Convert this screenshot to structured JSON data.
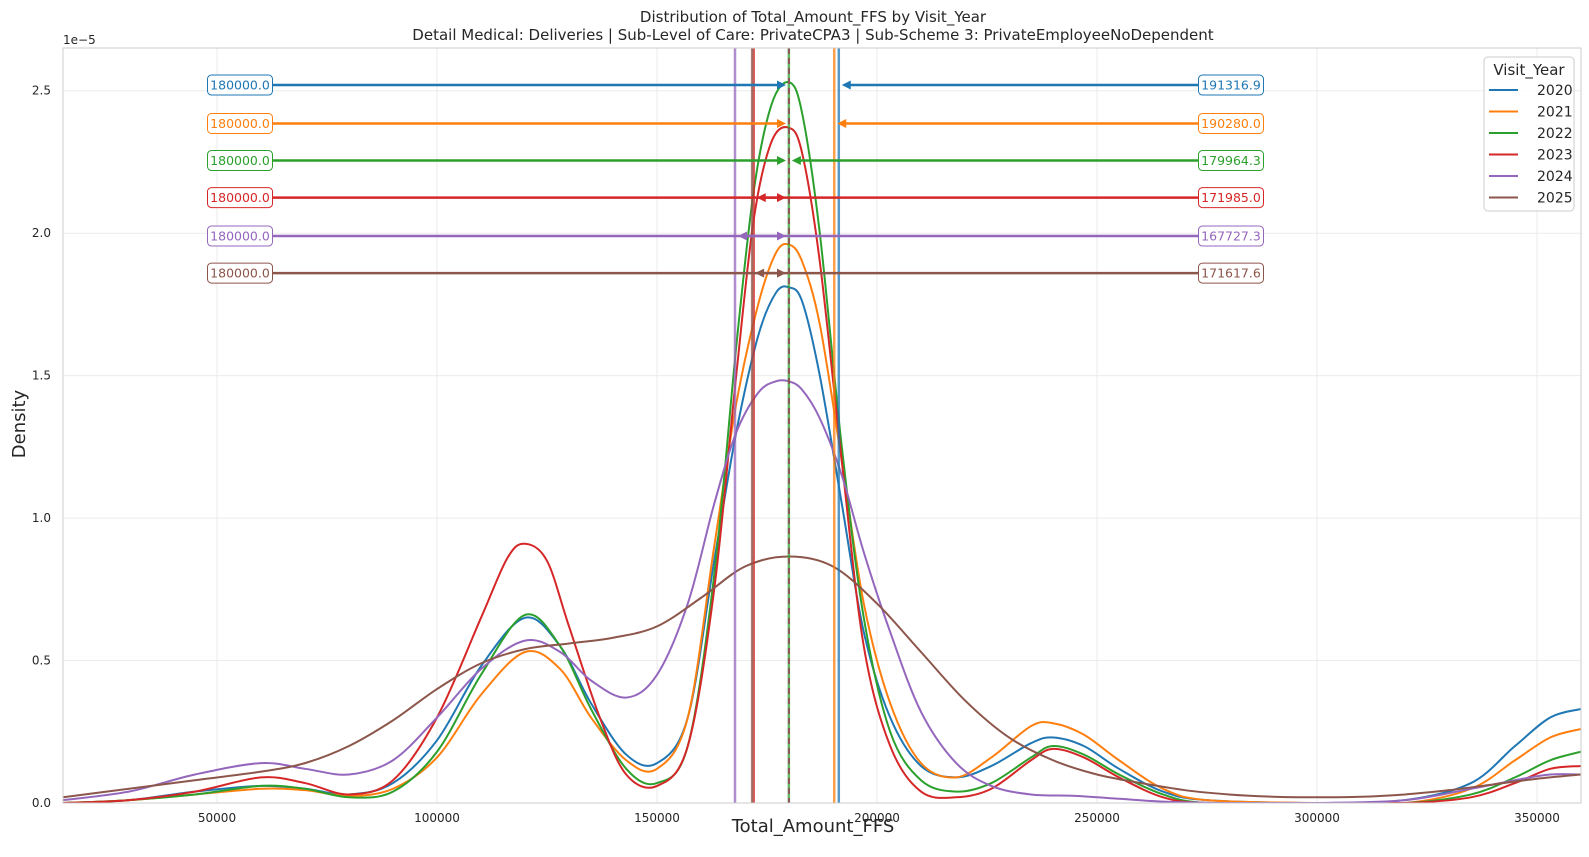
{
  "chart_data": {
    "type": "line",
    "title": "Distribution of Total_Amount_FFS by Visit_Year",
    "subtitle": "Detail Medical: Deliveries | Sub-Level of Care: PrivateCPA3 | Sub-Scheme 3: PrivateEmployeeNoDependent",
    "xlabel": "Total_Amount_FFS",
    "ylabel": "Density",
    "y_offset_label": "1e−5",
    "xlim": [
      15000,
      360000
    ],
    "ylim": [
      0,
      2.65
    ],
    "x_ticks": [
      50000,
      100000,
      150000,
      200000,
      250000,
      300000,
      350000
    ],
    "x_tick_labels": [
      "50000",
      "100000",
      "150000",
      "200000",
      "250000",
      "300000",
      "350000"
    ],
    "y_ticks": [
      0,
      0.5,
      1.0,
      1.5,
      2.0,
      2.5
    ],
    "y_tick_labels": [
      "0.0",
      "0.5",
      "1.0",
      "1.5",
      "2.0",
      "2.5"
    ],
    "grid": true,
    "legend_title": "Visit_Year",
    "legend_position": "top-right",
    "series": [
      {
        "name": "2020",
        "color": "#1f77b4",
        "median": 180000,
        "mean": 191316.9,
        "median_label": "180000.0",
        "mean_label": "191316.9",
        "annotation_y": 2.52,
        "points": [
          [
            15000,
            0.0
          ],
          [
            30000,
            0.01
          ],
          [
            45000,
            0.04
          ],
          [
            60000,
            0.06
          ],
          [
            70000,
            0.05
          ],
          [
            80000,
            0.03
          ],
          [
            90000,
            0.07
          ],
          [
            100000,
            0.22
          ],
          [
            110000,
            0.48
          ],
          [
            120000,
            0.65
          ],
          [
            128000,
            0.55
          ],
          [
            135000,
            0.35
          ],
          [
            143000,
            0.17
          ],
          [
            150000,
            0.14
          ],
          [
            157000,
            0.3
          ],
          [
            163000,
            0.85
          ],
          [
            168000,
            1.3
          ],
          [
            173000,
            1.64
          ],
          [
            177000,
            1.79
          ],
          [
            180000,
            1.81
          ],
          [
            183000,
            1.76
          ],
          [
            187000,
            1.5
          ],
          [
            192000,
            1.05
          ],
          [
            197000,
            0.6
          ],
          [
            203000,
            0.3
          ],
          [
            210000,
            0.13
          ],
          [
            218000,
            0.09
          ],
          [
            226000,
            0.13
          ],
          [
            235000,
            0.21
          ],
          [
            240000,
            0.23
          ],
          [
            247000,
            0.2
          ],
          [
            255000,
            0.12
          ],
          [
            265000,
            0.04
          ],
          [
            275000,
            0.01
          ],
          [
            300000,
            0.0
          ],
          [
            320000,
            0.01
          ],
          [
            335000,
            0.07
          ],
          [
            345000,
            0.2
          ],
          [
            353000,
            0.3
          ],
          [
            360000,
            0.33
          ]
        ]
      },
      {
        "name": "2021",
        "color": "#ff7f0e",
        "median": 180000,
        "mean": 190280,
        "median_label": "180000.0",
        "mean_label": "190280.0",
        "annotation_y": 2.385,
        "points": [
          [
            15000,
            0.0
          ],
          [
            30000,
            0.01
          ],
          [
            45000,
            0.03
          ],
          [
            60000,
            0.05
          ],
          [
            70000,
            0.045
          ],
          [
            80000,
            0.025
          ],
          [
            90000,
            0.05
          ],
          [
            100000,
            0.16
          ],
          [
            110000,
            0.38
          ],
          [
            120000,
            0.53
          ],
          [
            128000,
            0.47
          ],
          [
            135000,
            0.3
          ],
          [
            143000,
            0.15
          ],
          [
            150000,
            0.12
          ],
          [
            157000,
            0.3
          ],
          [
            163000,
            0.9
          ],
          [
            168000,
            1.4
          ],
          [
            173000,
            1.75
          ],
          [
            177000,
            1.93
          ],
          [
            180000,
            1.96
          ],
          [
            183000,
            1.9
          ],
          [
            187000,
            1.68
          ],
          [
            192000,
            1.2
          ],
          [
            197000,
            0.7
          ],
          [
            203000,
            0.35
          ],
          [
            210000,
            0.14
          ],
          [
            218000,
            0.09
          ],
          [
            226000,
            0.16
          ],
          [
            235000,
            0.27
          ],
          [
            240000,
            0.28
          ],
          [
            247000,
            0.24
          ],
          [
            255000,
            0.15
          ],
          [
            265000,
            0.05
          ],
          [
            275000,
            0.01
          ],
          [
            300000,
            0.0
          ],
          [
            320000,
            0.0
          ],
          [
            335000,
            0.05
          ],
          [
            345000,
            0.15
          ],
          [
            353000,
            0.23
          ],
          [
            360000,
            0.26
          ]
        ]
      },
      {
        "name": "2022",
        "color": "#2ca02c",
        "median": 180000,
        "mean": 179964.3,
        "median_label": "180000.0",
        "mean_label": "179964.3",
        "annotation_y": 2.255,
        "points": [
          [
            15000,
            0.0
          ],
          [
            30000,
            0.01
          ],
          [
            45000,
            0.03
          ],
          [
            60000,
            0.06
          ],
          [
            70000,
            0.05
          ],
          [
            80000,
            0.02
          ],
          [
            90000,
            0.04
          ],
          [
            100000,
            0.18
          ],
          [
            110000,
            0.45
          ],
          [
            120000,
            0.66
          ],
          [
            128000,
            0.55
          ],
          [
            135000,
            0.33
          ],
          [
            143000,
            0.12
          ],
          [
            150000,
            0.07
          ],
          [
            157000,
            0.2
          ],
          [
            163000,
            0.8
          ],
          [
            168000,
            1.6
          ],
          [
            172000,
            2.15
          ],
          [
            176000,
            2.45
          ],
          [
            180000,
            2.53
          ],
          [
            183000,
            2.42
          ],
          [
            187000,
            2.0
          ],
          [
            192000,
            1.25
          ],
          [
            197000,
            0.65
          ],
          [
            203000,
            0.25
          ],
          [
            210000,
            0.08
          ],
          [
            218000,
            0.04
          ],
          [
            226000,
            0.07
          ],
          [
            235000,
            0.16
          ],
          [
            240000,
            0.2
          ],
          [
            247000,
            0.17
          ],
          [
            255000,
            0.1
          ],
          [
            265000,
            0.03
          ],
          [
            275000,
            0.0
          ],
          [
            300000,
            0.0
          ],
          [
            320000,
            0.0
          ],
          [
            335000,
            0.03
          ],
          [
            345000,
            0.09
          ],
          [
            353000,
            0.15
          ],
          [
            360000,
            0.18
          ]
        ]
      },
      {
        "name": "2023",
        "color": "#d62728",
        "median": 180000,
        "mean": 171985,
        "median_label": "180000.0",
        "mean_label": "171985.0",
        "annotation_y": 2.125,
        "points": [
          [
            15000,
            0.0
          ],
          [
            30000,
            0.01
          ],
          [
            45000,
            0.04
          ],
          [
            60000,
            0.09
          ],
          [
            70000,
            0.07
          ],
          [
            80000,
            0.03
          ],
          [
            90000,
            0.08
          ],
          [
            100000,
            0.3
          ],
          [
            110000,
            0.65
          ],
          [
            116000,
            0.86
          ],
          [
            120000,
            0.91
          ],
          [
            125000,
            0.85
          ],
          [
            130000,
            0.62
          ],
          [
            137000,
            0.3
          ],
          [
            143000,
            0.1
          ],
          [
            150000,
            0.06
          ],
          [
            157000,
            0.2
          ],
          [
            163000,
            0.75
          ],
          [
            168000,
            1.5
          ],
          [
            172000,
            2.05
          ],
          [
            176000,
            2.32
          ],
          [
            180000,
            2.37
          ],
          [
            183000,
            2.28
          ],
          [
            187000,
            1.9
          ],
          [
            192000,
            1.2
          ],
          [
            197000,
            0.55
          ],
          [
            203000,
            0.2
          ],
          [
            210000,
            0.04
          ],
          [
            218000,
            0.02
          ],
          [
            226000,
            0.05
          ],
          [
            235000,
            0.15
          ],
          [
            240000,
            0.19
          ],
          [
            247000,
            0.16
          ],
          [
            255000,
            0.09
          ],
          [
            265000,
            0.02
          ],
          [
            275000,
            0.0
          ],
          [
            300000,
            0.0
          ],
          [
            320000,
            0.0
          ],
          [
            335000,
            0.02
          ],
          [
            345000,
            0.07
          ],
          [
            353000,
            0.12
          ],
          [
            360000,
            0.13
          ]
        ]
      },
      {
        "name": "2024",
        "color": "#9467bd",
        "median": 180000,
        "mean": 167727.3,
        "median_label": "180000.0",
        "mean_label": "167727.3",
        "annotation_y": 1.99,
        "points": [
          [
            15000,
            0.01
          ],
          [
            30000,
            0.04
          ],
          [
            45000,
            0.1
          ],
          [
            60000,
            0.14
          ],
          [
            70000,
            0.12
          ],
          [
            80000,
            0.1
          ],
          [
            90000,
            0.15
          ],
          [
            100000,
            0.3
          ],
          [
            110000,
            0.47
          ],
          [
            120000,
            0.57
          ],
          [
            128000,
            0.53
          ],
          [
            135000,
            0.43
          ],
          [
            143000,
            0.37
          ],
          [
            150000,
            0.45
          ],
          [
            157000,
            0.7
          ],
          [
            163000,
            1.05
          ],
          [
            168000,
            1.3
          ],
          [
            173000,
            1.44
          ],
          [
            177000,
            1.48
          ],
          [
            180000,
            1.48
          ],
          [
            183000,
            1.45
          ],
          [
            187000,
            1.35
          ],
          [
            192000,
            1.15
          ],
          [
            197000,
            0.88
          ],
          [
            203000,
            0.6
          ],
          [
            210000,
            0.32
          ],
          [
            218000,
            0.14
          ],
          [
            226000,
            0.06
          ],
          [
            235000,
            0.03
          ],
          [
            245000,
            0.025
          ],
          [
            255000,
            0.015
          ],
          [
            265000,
            0.005
          ],
          [
            280000,
            0.0
          ],
          [
            300000,
            0.0
          ],
          [
            320000,
            0.01
          ],
          [
            335000,
            0.05
          ],
          [
            345000,
            0.08
          ],
          [
            353000,
            0.1
          ],
          [
            360000,
            0.1
          ]
        ]
      },
      {
        "name": "2025",
        "color": "#8c564b",
        "median": 180000,
        "mean": 171617.6,
        "median_label": "180000.0",
        "mean_label": "171617.6",
        "annotation_y": 1.86,
        "points": [
          [
            15000,
            0.02
          ],
          [
            30000,
            0.05
          ],
          [
            45000,
            0.08
          ],
          [
            60000,
            0.11
          ],
          [
            70000,
            0.14
          ],
          [
            80000,
            0.2
          ],
          [
            90000,
            0.29
          ],
          [
            100000,
            0.4
          ],
          [
            110000,
            0.49
          ],
          [
            120000,
            0.54
          ],
          [
            130000,
            0.56
          ],
          [
            140000,
            0.58
          ],
          [
            150000,
            0.62
          ],
          [
            160000,
            0.72
          ],
          [
            170000,
            0.83
          ],
          [
            180000,
            0.865
          ],
          [
            190000,
            0.83
          ],
          [
            200000,
            0.7
          ],
          [
            210000,
            0.53
          ],
          [
            220000,
            0.36
          ],
          [
            230000,
            0.23
          ],
          [
            240000,
            0.15
          ],
          [
            250000,
            0.1
          ],
          [
            260000,
            0.07
          ],
          [
            270000,
            0.045
          ],
          [
            280000,
            0.03
          ],
          [
            290000,
            0.022
          ],
          [
            300000,
            0.02
          ],
          [
            310000,
            0.022
          ],
          [
            320000,
            0.03
          ],
          [
            330000,
            0.045
          ],
          [
            340000,
            0.065
          ],
          [
            350000,
            0.085
          ],
          [
            360000,
            0.1
          ]
        ]
      }
    ]
  }
}
